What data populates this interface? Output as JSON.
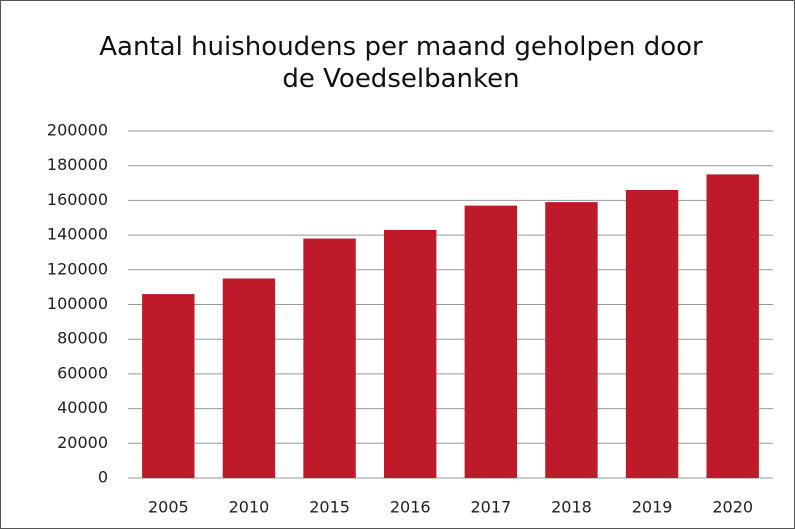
{
  "chart_data": {
    "type": "bar",
    "title": "Aantal huishoudens per maand geholpen door de Voedselbanken",
    "categories": [
      "2005",
      "2010",
      "2015",
      "2016",
      "2017",
      "2018",
      "2019",
      "2020"
    ],
    "values": [
      106000,
      115000,
      138000,
      143000,
      157000,
      159000,
      166000,
      175000
    ],
    "color": "#be1a2a",
    "ylim": [
      0,
      200000
    ],
    "yticks": [
      0,
      20000,
      40000,
      60000,
      80000,
      100000,
      120000,
      140000,
      160000,
      180000,
      200000
    ],
    "grid": true
  }
}
